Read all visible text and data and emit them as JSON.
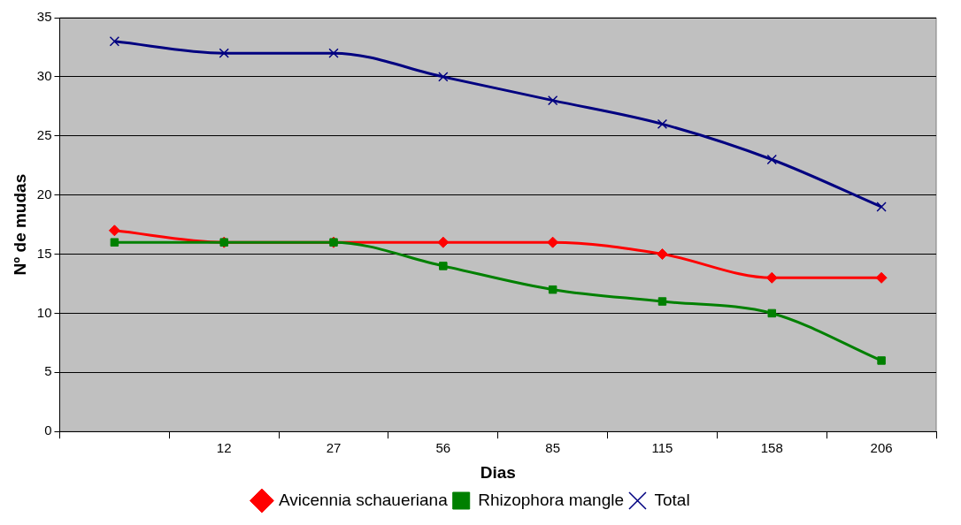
{
  "chart_data": {
    "type": "line",
    "xlabel": "Dias",
    "ylabel": "Nº de mudas",
    "categories": [
      null,
      "12",
      "27",
      "56",
      "85",
      "115",
      "158",
      "206"
    ],
    "series": [
      {
        "name": "Avicennia schaueriana",
        "color": "#ff0000",
        "marker": "diamond",
        "values": [
          17,
          16,
          16,
          16,
          16,
          15,
          13,
          13
        ]
      },
      {
        "name": "Rhizophora mangle",
        "color": "#008000",
        "marker": "square",
        "values": [
          16,
          16,
          16,
          14,
          12,
          11,
          10,
          6
        ]
      },
      {
        "name": "Total",
        "color": "#000080",
        "marker": "cross",
        "values": [
          33,
          32,
          32,
          30,
          28,
          26,
          23,
          19
        ]
      }
    ],
    "ylim": [
      0,
      35
    ],
    "yticks": [
      0,
      5,
      10,
      15,
      20,
      25,
      30,
      35
    ],
    "grid": "y",
    "legend": "bottom"
  }
}
